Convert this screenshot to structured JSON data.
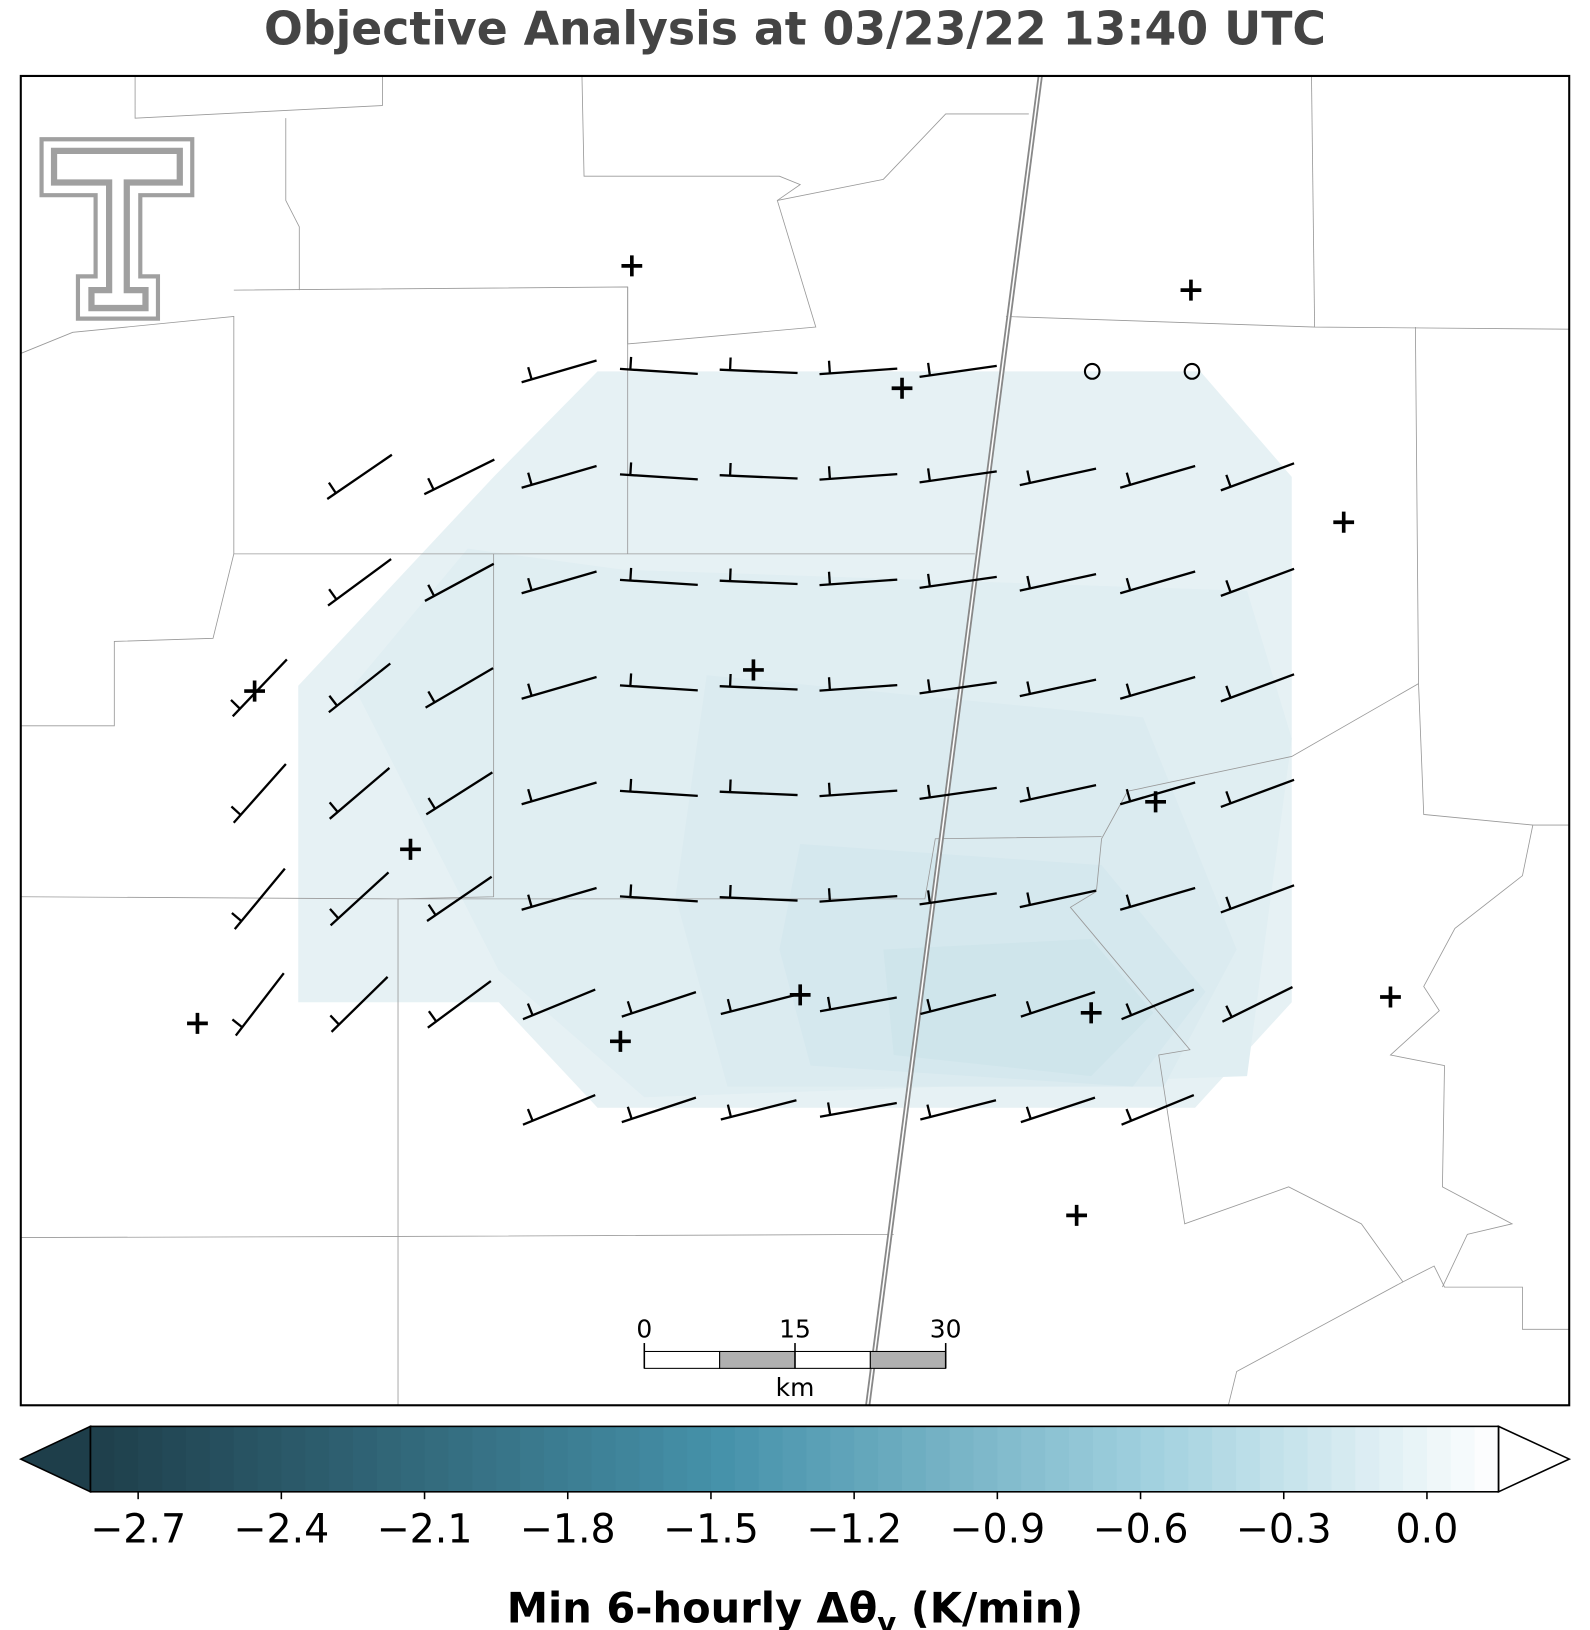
{
  "title": "Objective Analysis at 03/23/22 13:40 UTC",
  "colorbar": {
    "label": {
      "main": "Min 6-hourly Δθ",
      "subscript": "v",
      "units": "(K/min)"
    },
    "lim": [
      -2.8,
      0.15
    ],
    "step": 0.05,
    "ticks": [
      {
        "value": -2.7,
        "label": "−2.7"
      },
      {
        "value": -2.4,
        "label": "−2.4"
      },
      {
        "value": -2.1,
        "label": "−2.1"
      },
      {
        "value": -1.8,
        "label": "−1.8"
      },
      {
        "value": -1.5,
        "label": "−1.5"
      },
      {
        "value": -1.2,
        "label": "−1.2"
      },
      {
        "value": -0.9,
        "label": "−0.9"
      },
      {
        "value": -0.6,
        "label": "−0.6"
      },
      {
        "value": -0.3,
        "label": "−0.3"
      },
      {
        "value": 0.0,
        "label": "0.0"
      }
    ]
  },
  "scale_bar": {
    "ticks": [
      0,
      15,
      30
    ],
    "unit": "km"
  }
}
